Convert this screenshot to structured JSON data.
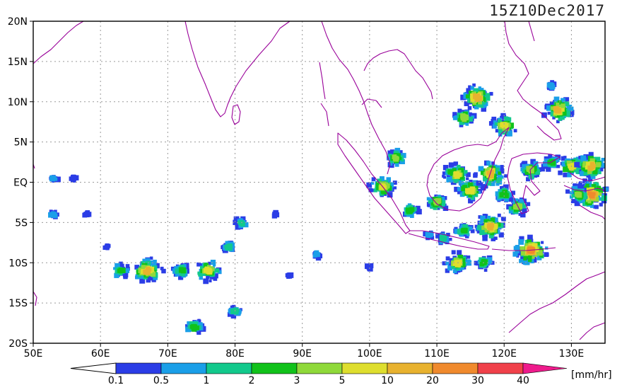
{
  "title": "15Z10Dec2017",
  "map": {
    "lat_labels": [
      {
        "label": "20N",
        "lat": 20
      },
      {
        "label": "15N",
        "lat": 15
      },
      {
        "label": "10N",
        "lat": 10
      },
      {
        "label": "5N",
        "lat": 5
      },
      {
        "label": "EQ",
        "lat": 0
      },
      {
        "label": "5S",
        "lat": -5
      },
      {
        "label": "10S",
        "lat": -10
      },
      {
        "label": "15S",
        "lat": -15
      },
      {
        "label": "20S",
        "lat": -20
      }
    ],
    "lon_labels": [
      {
        "label": "50E",
        "lon": 50
      },
      {
        "label": "60E",
        "lon": 60
      },
      {
        "label": "70E",
        "lon": 70
      },
      {
        "label": "80E",
        "lon": 80
      },
      {
        "label": "90E",
        "lon": 90
      },
      {
        "label": "100E",
        "lon": 100
      },
      {
        "label": "110E",
        "lon": 110
      },
      {
        "label": "120E",
        "lon": 120
      },
      {
        "label": "130E",
        "lon": 130
      }
    ],
    "lon_range": [
      50,
      135
    ],
    "lat_range": [
      -20,
      20
    ],
    "grid": true,
    "coastline_color": "#990099"
  },
  "legend": {
    "unit": "[mm/hr]",
    "ticks": [
      "0.1",
      "0.5",
      "1",
      "2",
      "3",
      "5",
      "10",
      "20",
      "30",
      "40"
    ],
    "colors": [
      "#2b3de6",
      "#1a9fe8",
      "#12c98c",
      "#11c21b",
      "#8fd93a",
      "#dede2e",
      "#e8b22f",
      "#f08a2d",
      "#f0414a",
      "#ee1b8c"
    ]
  },
  "rain_cells": [
    {
      "lon": 53,
      "lat": 0.5,
      "level": 1
    },
    {
      "lon": 56,
      "lat": 0.5,
      "level": 0
    },
    {
      "lon": 53,
      "lat": -4,
      "level": 1
    },
    {
      "lon": 58,
      "lat": -4,
      "level": 0
    },
    {
      "lon": 61,
      "lat": -8,
      "level": 0
    },
    {
      "lon": 63,
      "lat": -11,
      "level": 3
    },
    {
      "lon": 67,
      "lat": -11,
      "level": 6
    },
    {
      "lon": 72,
      "lat": -11,
      "level": 3
    },
    {
      "lon": 76,
      "lat": -11,
      "level": 5
    },
    {
      "lon": 79,
      "lat": -8,
      "level": 2
    },
    {
      "lon": 81,
      "lat": -5,
      "level": 2
    },
    {
      "lon": 86,
      "lat": -4,
      "level": 0
    },
    {
      "lon": 88,
      "lat": -11.5,
      "level": 0
    },
    {
      "lon": 92,
      "lat": -9,
      "level": 1
    },
    {
      "lon": 100,
      "lat": -10.5,
      "level": 0
    },
    {
      "lon": 74,
      "lat": -18,
      "level": 3
    },
    {
      "lon": 80,
      "lat": -16,
      "level": 2
    },
    {
      "lon": 116,
      "lat": 10.5,
      "level": 6
    },
    {
      "lon": 114,
      "lat": 8,
      "level": 4
    },
    {
      "lon": 120,
      "lat": 7,
      "level": 5
    },
    {
      "lon": 128,
      "lat": 9,
      "level": 6
    },
    {
      "lon": 127,
      "lat": 12,
      "level": 1
    },
    {
      "lon": 113,
      "lat": 1,
      "level": 5
    },
    {
      "lon": 110,
      "lat": -2.5,
      "level": 4
    },
    {
      "lon": 115,
      "lat": -1,
      "level": 5
    },
    {
      "lon": 118,
      "lat": 1,
      "level": 6
    },
    {
      "lon": 124,
      "lat": 1.5,
      "level": 4
    },
    {
      "lon": 127,
      "lat": 2.5,
      "level": 3
    },
    {
      "lon": 130,
      "lat": 2,
      "level": 5
    },
    {
      "lon": 133,
      "lat": 2,
      "level": 6
    },
    {
      "lon": 133,
      "lat": -1.5,
      "level": 7
    },
    {
      "lon": 131,
      "lat": -1.5,
      "level": 4
    },
    {
      "lon": 122,
      "lat": -3,
      "level": 4
    },
    {
      "lon": 118,
      "lat": -5.5,
      "level": 6
    },
    {
      "lon": 114,
      "lat": -6,
      "level": 3
    },
    {
      "lon": 111,
      "lat": -7,
      "level": 2
    },
    {
      "lon": 109,
      "lat": -6.5,
      "level": 1
    },
    {
      "lon": 113,
      "lat": -10,
      "level": 5
    },
    {
      "lon": 117,
      "lat": -10,
      "level": 3
    },
    {
      "lon": 104,
      "lat": 3,
      "level": 4
    },
    {
      "lon": 102,
      "lat": -0.5,
      "level": 5
    },
    {
      "lon": 106,
      "lat": -3.5,
      "level": 3
    },
    {
      "lon": 120,
      "lat": -1.5,
      "level": 3
    },
    {
      "lon": 124,
      "lat": -8.5,
      "level": 7
    }
  ]
}
